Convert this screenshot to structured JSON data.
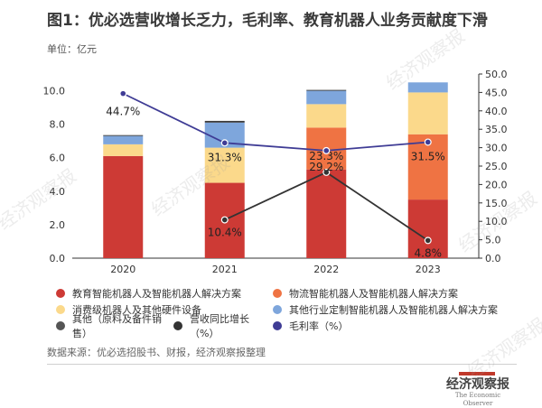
{
  "title": "图1：优必选营收增长乏力，毛利率、教育机器人业务贡献度下滑",
  "unit": "单位：亿元",
  "source": "数据来源：优必选招股书、财报，经济观察报整理",
  "logo": {
    "main": "经济观察报",
    "sub": "The Economic Observer"
  },
  "watermark": "经济观察报",
  "colors": {
    "education": "#cd3a35",
    "logistics": "#ef7343",
    "consumer": "#fbd98b",
    "custom": "#7ea6dc",
    "other": "#3a3a3a",
    "growth": "#333333",
    "margin": "#3f3c95"
  },
  "legend": [
    {
      "label": "教育智能机器人及智能机器人解决方案",
      "color": "#cd3a35"
    },
    {
      "label": "物流智能机器人及智能机器人解决方案",
      "color": "#ef7343"
    },
    {
      "label": "消费级机器人及其他硬件设备",
      "color": "#fbd98b"
    },
    {
      "label": "其他行业定制智能机器人及智能机器人解决方案",
      "color": "#7ea6dc"
    },
    {
      "label": "其他（原料及备件销售）",
      "color": "#555555"
    },
    {
      "label": "营收同比增长（%）",
      "color": "#333333"
    },
    {
      "label": "毛利率（%）",
      "color": "#3f3c95"
    }
  ],
  "chart_data": {
    "type": "bar",
    "categories": [
      "2020",
      "2021",
      "2022",
      "2023"
    ],
    "ylim": [
      0,
      11.0
    ],
    "y2lim": [
      0,
      50.0
    ],
    "y_ticks": [
      "0.0",
      "2.0",
      "4.0",
      "6.0",
      "8.0",
      "10.0"
    ],
    "y2_ticks": [
      "0.0",
      "5.0",
      "10.0",
      "15.0",
      "20.0",
      "25.0",
      "30.0",
      "35.0",
      "40.0",
      "45.0",
      "50.0"
    ],
    "series": [
      {
        "name": "教育智能机器人及智能机器人解决方案",
        "values": [
          6.1,
          4.5,
          5.3,
          3.5
        ]
      },
      {
        "name": "物流智能机器人及智能机器人解决方案",
        "values": [
          0.0,
          0.0,
          2.5,
          3.9
        ]
      },
      {
        "name": "消费级机器人及其他硬件设备",
        "values": [
          0.7,
          2.1,
          1.4,
          2.5
        ]
      },
      {
        "name": "其他行业定制智能机器人及智能机器人解决方案",
        "values": [
          0.5,
          1.5,
          0.8,
          0.6
        ]
      },
      {
        "name": "其他（原料及备件销售）",
        "values": [
          0.05,
          0.1,
          0.05,
          0.0
        ]
      }
    ],
    "lines": [
      {
        "name": "营收同比增长（%）",
        "values": [
          null,
          10.4,
          23.3,
          4.8
        ],
        "labels": [
          "",
          "10.4%",
          "23.3%",
          "4.8%"
        ]
      },
      {
        "name": "毛利率（%）",
        "values": [
          44.7,
          31.3,
          29.2,
          31.5
        ],
        "labels": [
          "44.7%",
          "31.3%",
          "29.2%",
          "31.5%"
        ]
      }
    ]
  }
}
